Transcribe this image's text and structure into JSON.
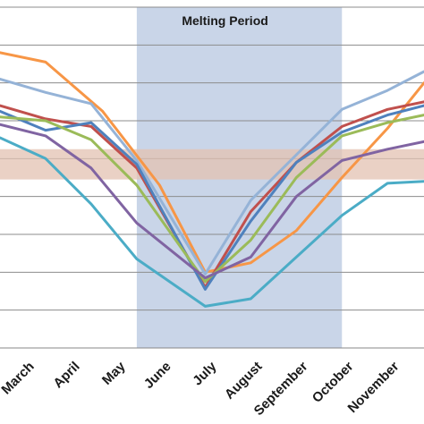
{
  "chart_data": {
    "type": "line",
    "categories": [
      "March",
      "April",
      "May",
      "June",
      "July",
      "August",
      "September",
      "October",
      "November"
    ],
    "x": [
      0.5,
      1.5,
      2.5,
      3.5,
      4.5,
      5.5,
      6.5,
      7.5,
      8.5
    ],
    "xlim": [
      0,
      9.3
    ],
    "ylim": [
      0,
      9
    ],
    "grid": true,
    "legend": "none",
    "annotations": [
      {
        "text": "Melting Period",
        "x_range": [
          3.0,
          7.5
        ],
        "color": "#c9d5e8"
      }
    ],
    "band": {
      "y_range": [
        4.45,
        5.25
      ],
      "color": "#e3c1b1"
    },
    "series": [
      {
        "color": "#f79646",
        "x": [
          0,
          1,
          2.25,
          3.5,
          4.5,
          5.5,
          6.5,
          7.5,
          8.5,
          9.3
        ],
        "values": [
          7.8,
          7.55,
          6.25,
          4.3,
          2.0,
          2.25,
          3.1,
          4.5,
          5.8,
          7.0
        ]
      },
      {
        "color": "#95b3d7",
        "x": [
          0,
          1,
          2,
          3,
          4.5,
          5.5,
          6.5,
          7.5,
          8.5,
          9.3
        ],
        "values": [
          7.1,
          6.75,
          6.45,
          4.95,
          1.95,
          3.9,
          5.1,
          6.3,
          6.8,
          7.3
        ]
      },
      {
        "color": "#c0504d",
        "x": [
          0,
          1,
          2,
          3,
          4.5,
          5.5,
          6.5,
          7.5,
          8.5,
          9.3
        ],
        "values": [
          6.4,
          6.05,
          5.85,
          4.75,
          1.6,
          3.6,
          4.9,
          5.85,
          6.3,
          6.5
        ]
      },
      {
        "color": "#4f81bd",
        "x": [
          0,
          1,
          2,
          3,
          4.5,
          5.5,
          6.5,
          7.5,
          8.5,
          9.3
        ],
        "values": [
          6.25,
          5.75,
          5.95,
          4.85,
          1.55,
          3.35,
          4.9,
          5.7,
          6.15,
          6.4
        ]
      },
      {
        "color": "#9bbb59",
        "x": [
          0,
          1,
          2,
          3,
          4.5,
          5.5,
          6.5,
          7.5,
          8.5,
          9.3
        ],
        "values": [
          6.1,
          6.0,
          5.5,
          4.3,
          1.75,
          2.85,
          4.5,
          5.6,
          5.95,
          6.15
        ]
      },
      {
        "color": "#8064a2",
        "x": [
          0,
          1,
          2,
          3,
          4.5,
          5.5,
          6.5,
          7.5,
          8.5,
          9.3
        ],
        "values": [
          5.9,
          5.6,
          4.75,
          3.3,
          1.85,
          2.4,
          4.0,
          4.95,
          5.25,
          5.45
        ]
      },
      {
        "color": "#4bacc6",
        "x": [
          0,
          1,
          2,
          3,
          4.5,
          5.5,
          6.5,
          7.5,
          8.5,
          9.3
        ],
        "values": [
          5.55,
          5.0,
          3.8,
          2.35,
          1.1,
          1.3,
          2.4,
          3.5,
          4.35,
          4.4
        ]
      }
    ]
  }
}
